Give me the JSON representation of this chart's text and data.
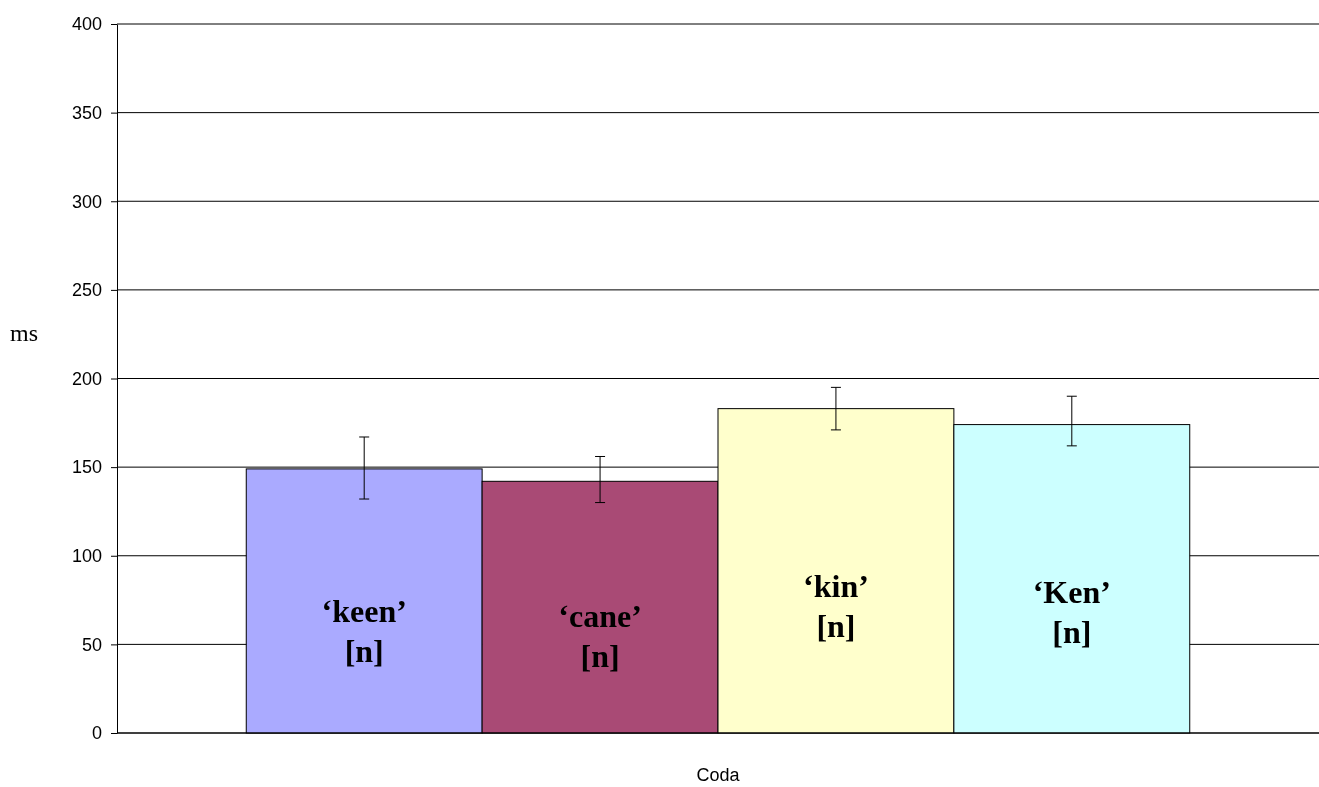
{
  "chart_data": {
    "type": "bar",
    "ylabel": "ms",
    "categories": [
      "Coda"
    ],
    "ylim": [
      0,
      400
    ],
    "yticks": [
      0,
      50,
      100,
      150,
      200,
      250,
      300,
      350,
      400
    ],
    "grid": "y",
    "series": [
      {
        "name": "‘keen’ [n]",
        "color": "#aaaaff",
        "values": [
          149
        ],
        "errors": [
          [
            132,
            167
          ]
        ]
      },
      {
        "name": "‘cane’ [n]",
        "color": "#a94a75",
        "values": [
          142
        ],
        "errors": [
          [
            130,
            156
          ]
        ]
      },
      {
        "name": "‘kin’ [n]",
        "color": "#ffffcc",
        "values": [
          183
        ],
        "errors": [
          [
            171,
            195
          ]
        ]
      },
      {
        "name": "‘Ken’ [n]",
        "color": "#ccffff",
        "values": [
          174
        ],
        "errors": [
          [
            162,
            190
          ]
        ]
      }
    ]
  }
}
